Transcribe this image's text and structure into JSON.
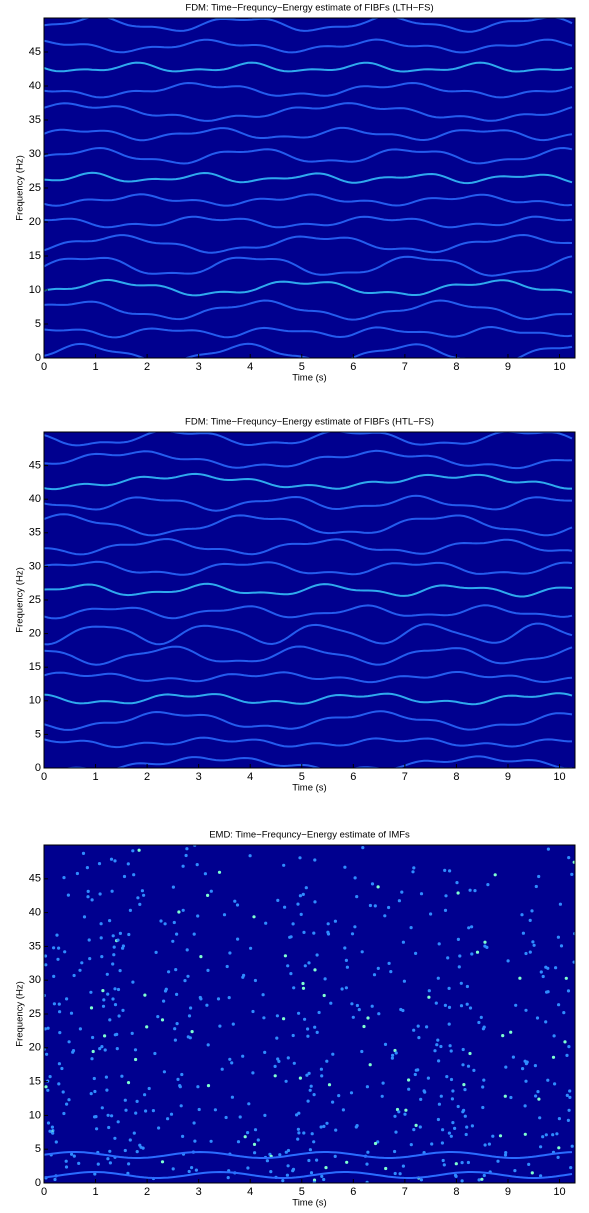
{
  "chart_data": [
    {
      "type": "heatmap",
      "title": "FDM: Time−Frequncy−Energy estimate of FIBFs (LTH−FS)",
      "xlabel": "Time (s)",
      "ylabel": "Frequency (Hz)",
      "xlim": [
        0,
        10.3
      ],
      "ylim": [
        0,
        50
      ],
      "xticks": [
        0,
        1,
        2,
        3,
        4,
        5,
        6,
        7,
        8,
        9,
        10
      ],
      "yticks": [
        0,
        5,
        10,
        15,
        20,
        25,
        30,
        35,
        40,
        45
      ]
    },
    {
      "type": "heatmap",
      "title": "FDM: Time−Frequncy−Energy estimate of FIBFs (HTL−FS)",
      "xlabel": "Time (s)",
      "ylabel": "Frequency (Hz)",
      "xlim": [
        0,
        10.3
      ],
      "ylim": [
        0,
        50
      ],
      "xticks": [
        0,
        1,
        2,
        3,
        4,
        5,
        6,
        7,
        8,
        9,
        10
      ],
      "yticks": [
        0,
        5,
        10,
        15,
        20,
        25,
        30,
        35,
        40,
        45
      ]
    },
    {
      "type": "heatmap",
      "title": "EMD: Time−Frequncy−Energy estimate of IMFs",
      "xlabel": "Time (s)",
      "ylabel": "Frequency (Hz)",
      "xlim": [
        0,
        10.3
      ],
      "ylim": [
        0,
        50
      ],
      "xticks": [
        0,
        1,
        2,
        3,
        4,
        5,
        6,
        7,
        8,
        9,
        10
      ],
      "yticks": [
        0,
        5,
        10,
        15,
        20,
        25,
        30,
        35,
        40,
        45
      ]
    }
  ]
}
